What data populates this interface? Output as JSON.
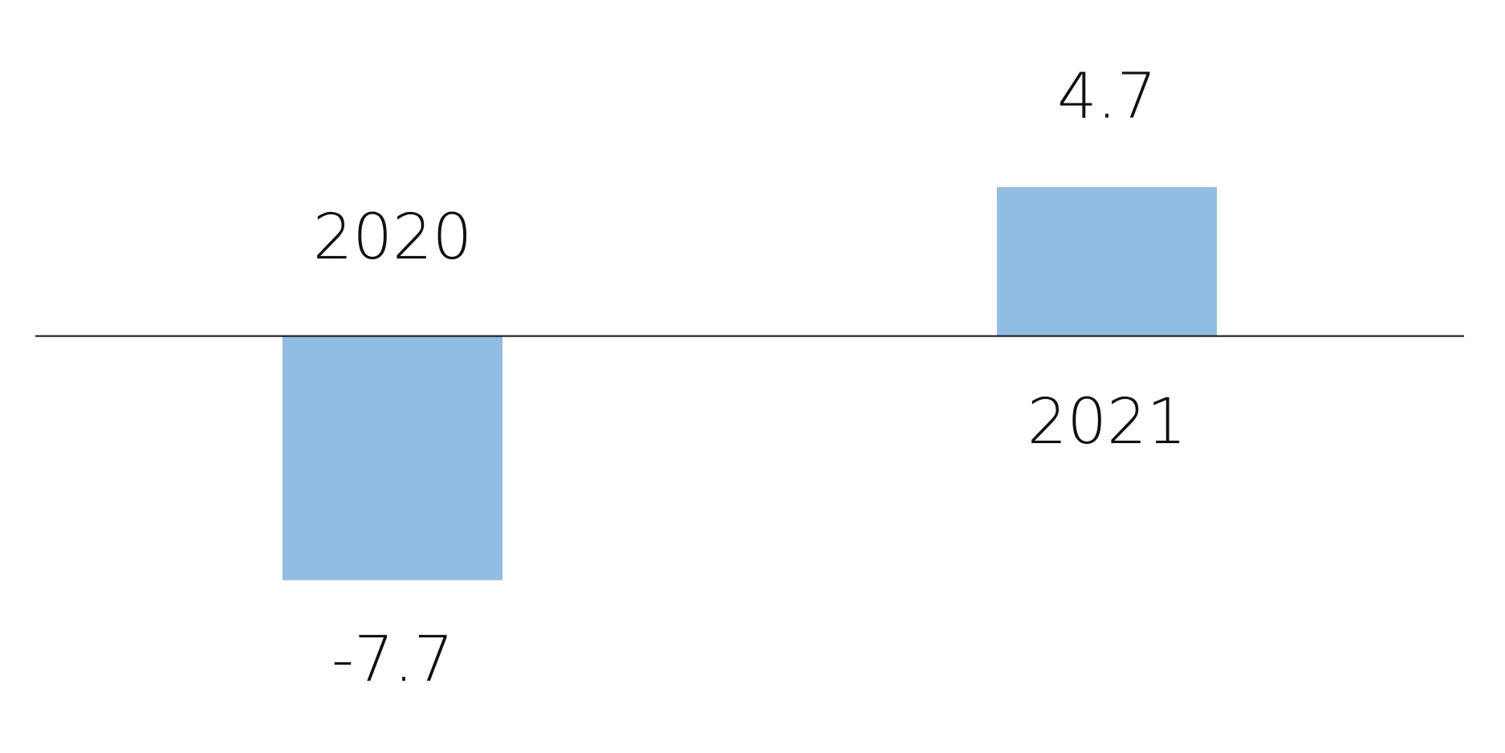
{
  "chart_data": {
    "type": "bar",
    "categories": [
      "2020",
      "2021"
    ],
    "values": [
      -7.7,
      4.7
    ],
    "color": "#92bde3",
    "ylim": [
      -13,
      10.5
    ]
  }
}
